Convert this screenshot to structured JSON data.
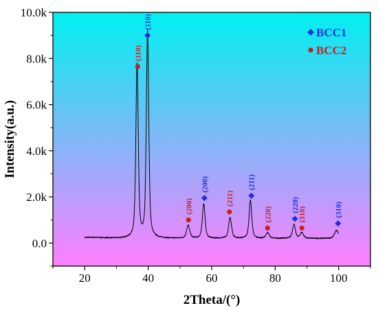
{
  "chart_data": {
    "type": "line",
    "title": "",
    "xlabel": "2Theta/(°)",
    "ylabel": "Intensity(a.u.)",
    "xlim": [
      10,
      110
    ],
    "ylim": [
      -1000,
      10000
    ],
    "x_ticks": [
      20,
      40,
      60,
      80,
      100
    ],
    "x_tick_labels": [
      "20",
      "40",
      "60",
      "80",
      "100"
    ],
    "y_ticks": [
      0,
      2000,
      4000,
      6000,
      8000,
      10000
    ],
    "y_tick_labels": [
      "0.0",
      "2.0k",
      "4.0k",
      "6.0k",
      "8.0k",
      "10.0k"
    ],
    "background_gradient": [
      "#00f0f0",
      "#ff7fff"
    ],
    "line_color": "#000000",
    "legend_position": "top-right",
    "legend": [
      {
        "label": "BCC1",
        "marker": "diamond",
        "color": "#1f2fe0"
      },
      {
        "label": "BCC2",
        "marker": "circle",
        "color": "#c8201e"
      }
    ],
    "baseline": 200,
    "peaks": [
      {
        "x": 36.5,
        "height": 7500,
        "width": 0.45
      },
      {
        "x": 39.8,
        "height": 8950,
        "width": 0.45
      },
      {
        "x": 52.6,
        "height": 550,
        "width": 0.6
      },
      {
        "x": 57.5,
        "height": 1500,
        "width": 0.5
      },
      {
        "x": 65.8,
        "height": 900,
        "width": 0.55
      },
      {
        "x": 72.2,
        "height": 1650,
        "width": 0.5
      },
      {
        "x": 77.6,
        "height": 250,
        "width": 0.6
      },
      {
        "x": 85.9,
        "height": 600,
        "width": 0.55
      },
      {
        "x": 88.4,
        "height": 250,
        "width": 0.6
      },
      {
        "x": 99.3,
        "height": 350,
        "width": 0.7
      }
    ],
    "markers": [
      {
        "x": 36.7,
        "y": 7650,
        "phase": "BCC2",
        "marker": "circle",
        "color": "#c8201e",
        "label": "(110)"
      },
      {
        "x": 39.8,
        "y": 9000,
        "phase": "BCC1",
        "marker": "diamond",
        "color": "#1f2fe0",
        "label": "(110)"
      },
      {
        "x": 52.7,
        "y": 1000,
        "phase": "BCC2",
        "marker": "circle",
        "color": "#c8201e",
        "label": "(200)"
      },
      {
        "x": 57.7,
        "y": 1950,
        "phase": "BCC1",
        "marker": "diamond",
        "color": "#1f2fe0",
        "label": "(200)"
      },
      {
        "x": 65.6,
        "y": 1350,
        "phase": "BCC2",
        "marker": "circle",
        "color": "#c8201e",
        "label": "(211)"
      },
      {
        "x": 72.5,
        "y": 2050,
        "phase": "BCC1",
        "marker": "diamond",
        "color": "#1f2fe0",
        "label": "(211)"
      },
      {
        "x": 77.6,
        "y": 650,
        "phase": "BCC2",
        "marker": "circle",
        "color": "#c8201e",
        "label": "(220)"
      },
      {
        "x": 86.2,
        "y": 1050,
        "phase": "BCC1",
        "marker": "diamond",
        "color": "#1f2fe0",
        "label": "(220)"
      },
      {
        "x": 88.4,
        "y": 650,
        "phase": "BCC2",
        "marker": "circle",
        "color": "#c8201e",
        "label": "(310)"
      },
      {
        "x": 99.8,
        "y": 850,
        "phase": "BCC1",
        "marker": "diamond",
        "color": "#1f2fe0",
        "label": "(310)"
      }
    ]
  }
}
